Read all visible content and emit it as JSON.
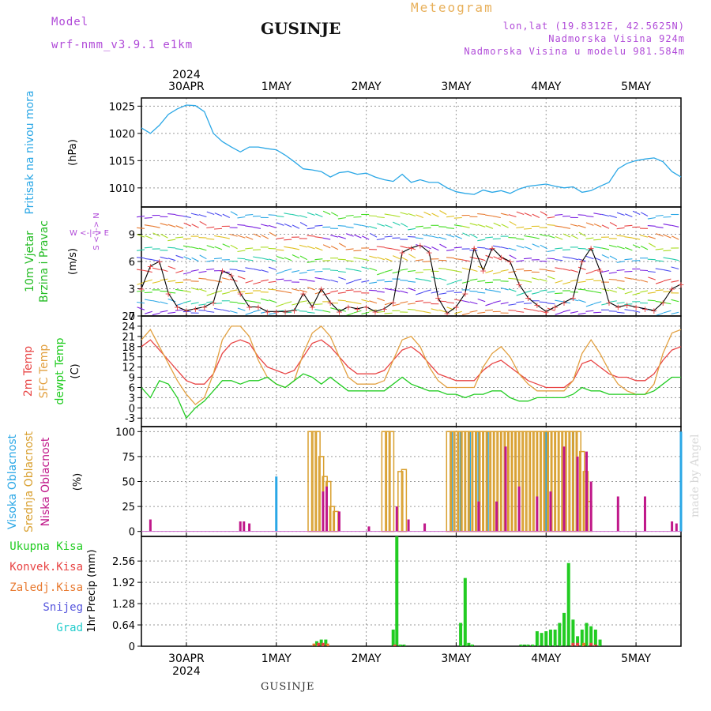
{
  "header": {
    "model_label": "Model",
    "model_name": "wrf-nmm_v3.9.1 e1km",
    "title": "GUSINJE",
    "subtitle": "Meteogram",
    "lonlat": "lon,lat (19.8312E, 42.5625N)",
    "elevation": "Nadmorska Visina 924m",
    "model_elevation": "Nadmorska Visina u modelu 981.584m"
  },
  "footer": {
    "station": "GUSINJE",
    "watermark": "made by Angel"
  },
  "colors": {
    "pressure": "#2aa7e6",
    "wind_label": "#22bb22",
    "temp2m": "#e84444",
    "sfc": "#e2a040",
    "dewpt": "#22cc22",
    "cloud_high": "#2aa7e6",
    "cloud_mid": "#d9a030",
    "cloud_low": "#c0188a",
    "precip_total": "#22cc22",
    "precip_conv": "#e84444",
    "precip_frz": "#e87a30",
    "snow": "#5555dd",
    "hail": "#22cccc",
    "header_purple": "#b04ad8"
  },
  "chart_data": [
    {
      "type": "line",
      "panel": "pressure",
      "title": "Pritisak na nivou mora",
      "ylabel": "(hPa)",
      "ylim": [
        1006.5,
        1026.5
      ],
      "yticks": [
        1010,
        1015,
        1020,
        1025
      ],
      "xlim": [
        -0.5,
        5.5
      ],
      "xunit": "days since 30APR 2024 00UTC",
      "top_year": "2024",
      "xtick_labels": [
        "30APR",
        "1MAY",
        "2MAY",
        "3MAY",
        "4MAY",
        "5MAY"
      ],
      "grid": true,
      "series": [
        {
          "name": "Pritisak na nivou mora",
          "x": [
            -0.5,
            -0.4,
            -0.3,
            -0.2,
            -0.1,
            0.0,
            0.1,
            0.2,
            0.3,
            0.4,
            0.5,
            0.6,
            0.7,
            0.8,
            0.9,
            1.0,
            1.1,
            1.2,
            1.3,
            1.4,
            1.5,
            1.6,
            1.7,
            1.8,
            1.9,
            2.0,
            2.1,
            2.2,
            2.3,
            2.4,
            2.5,
            2.6,
            2.7,
            2.8,
            2.9,
            3.0,
            3.1,
            3.2,
            3.3,
            3.4,
            3.5,
            3.6,
            3.7,
            3.8,
            3.9,
            4.0,
            4.1,
            4.2,
            4.3,
            4.4,
            4.5,
            4.6,
            4.7,
            4.8,
            4.9,
            5.0,
            5.1,
            5.2,
            5.3,
            5.4,
            5.5
          ],
          "values": [
            1021.0,
            1020.0,
            1021.5,
            1023.5,
            1024.5,
            1025.2,
            1025.1,
            1024.0,
            1020.0,
            1018.5,
            1017.5,
            1016.6,
            1017.5,
            1017.5,
            1017.2,
            1017.0,
            1016.0,
            1014.8,
            1013.5,
            1013.3,
            1013.0,
            1012.0,
            1012.8,
            1013.0,
            1012.5,
            1012.7,
            1012.0,
            1011.5,
            1011.2,
            1012.5,
            1011.0,
            1011.5,
            1011.0,
            1011.0,
            1010.0,
            1009.3,
            1009.0,
            1008.8,
            1009.6,
            1009.2,
            1009.5,
            1009.0,
            1009.8,
            1010.3,
            1010.5,
            1010.7,
            1010.3,
            1010.0,
            1010.2,
            1009.2,
            1009.5,
            1010.3,
            1011.0,
            1013.5,
            1014.5,
            1015.0,
            1015.3,
            1015.5,
            1014.8,
            1013.0,
            1012.0
          ]
        }
      ]
    },
    {
      "type": "scatter",
      "panel": "wind",
      "title": "10m Vjetar Brzina i Pravac",
      "ylabel": "(m/s)",
      "legend": "W <-|-> E  S <-|-> N",
      "ylim": [
        0,
        12
      ],
      "yticks": [
        0,
        3,
        6,
        9
      ],
      "xlim": [
        -0.5,
        5.5
      ],
      "grid": true,
      "series": [
        {
          "name": "10m Vjetar",
          "x": [
            -0.5,
            -0.4,
            -0.3,
            -0.2,
            -0.1,
            0.0,
            0.1,
            0.2,
            0.3,
            0.4,
            0.5,
            0.6,
            0.7,
            0.8,
            0.9,
            1.0,
            1.1,
            1.2,
            1.3,
            1.4,
            1.5,
            1.6,
            1.7,
            1.8,
            1.9,
            2.0,
            2.1,
            2.2,
            2.3,
            2.4,
            2.5,
            2.6,
            2.7,
            2.8,
            2.9,
            3.0,
            3.1,
            3.2,
            3.3,
            3.4,
            3.5,
            3.6,
            3.7,
            3.8,
            3.9,
            4.0,
            4.1,
            4.2,
            4.3,
            4.4,
            4.5,
            4.6,
            4.7,
            4.8,
            4.9,
            5.0,
            5.1,
            5.2,
            5.3,
            5.4,
            5.5
          ],
          "values": [
            3.0,
            5.5,
            6.0,
            2.5,
            1.0,
            0.6,
            0.8,
            1.0,
            1.5,
            5.0,
            4.5,
            2.5,
            1.0,
            1.0,
            0.5,
            0.5,
            0.5,
            0.6,
            2.5,
            1.0,
            3.0,
            1.5,
            0.5,
            1.0,
            0.8,
            1.0,
            0.5,
            0.8,
            1.5,
            7.0,
            7.5,
            7.8,
            7.0,
            2.0,
            0.3,
            1.0,
            2.5,
            7.5,
            5.0,
            7.5,
            6.5,
            6.0,
            3.5,
            2.0,
            1.2,
            0.5,
            1.0,
            1.5,
            2.0,
            6.0,
            7.5,
            5.0,
            1.5,
            1.0,
            1.2,
            1.0,
            0.8,
            0.6,
            1.5,
            3.0,
            3.5
          ]
        }
      ]
    },
    {
      "type": "line",
      "panel": "temperature",
      "ylabel": "(C)",
      "ylim": [
        -5.5,
        27
      ],
      "yticks": [
        -3,
        0,
        3,
        6,
        9,
        12,
        15,
        18,
        21,
        24,
        27
      ],
      "xlim": [
        -0.5,
        5.5
      ],
      "grid": true,
      "series": [
        {
          "name": "2m Temp",
          "x": [
            -0.5,
            -0.4,
            -0.3,
            -0.2,
            -0.1,
            0.0,
            0.1,
            0.2,
            0.3,
            0.4,
            0.5,
            0.6,
            0.7,
            0.8,
            0.9,
            1.0,
            1.1,
            1.2,
            1.3,
            1.4,
            1.5,
            1.6,
            1.7,
            1.8,
            1.9,
            2.0,
            2.1,
            2.2,
            2.3,
            2.4,
            2.5,
            2.6,
            2.7,
            2.8,
            2.9,
            3.0,
            3.1,
            3.2,
            3.3,
            3.4,
            3.5,
            3.6,
            3.7,
            3.8,
            3.9,
            4.0,
            4.1,
            4.2,
            4.3,
            4.4,
            4.5,
            4.6,
            4.7,
            4.8,
            4.9,
            5.0,
            5.1,
            5.2,
            5.3,
            5.4,
            5.5
          ],
          "values": [
            18,
            20,
            17,
            14,
            11,
            8,
            7,
            7,
            10,
            16,
            19,
            20,
            19,
            15,
            12,
            11,
            10,
            11,
            15,
            19,
            20,
            18,
            15,
            12,
            10,
            10,
            10,
            11,
            14,
            17,
            18,
            16,
            13,
            10,
            9,
            8,
            8,
            8,
            11,
            13,
            14,
            12,
            10,
            8,
            7,
            6,
            6,
            6,
            8,
            13,
            14,
            12,
            10,
            9,
            9,
            8,
            8,
            10,
            14,
            17,
            18
          ]
        },
        {
          "name": "SFC Temp",
          "x": [
            -0.5,
            -0.4,
            -0.3,
            -0.2,
            -0.1,
            0.0,
            0.1,
            0.2,
            0.3,
            0.4,
            0.5,
            0.6,
            0.7,
            0.8,
            0.9,
            1.0,
            1.1,
            1.2,
            1.3,
            1.4,
            1.5,
            1.6,
            1.7,
            1.8,
            1.9,
            2.0,
            2.1,
            2.2,
            2.3,
            2.4,
            2.5,
            2.6,
            2.7,
            2.8,
            2.9,
            3.0,
            3.1,
            3.2,
            3.3,
            3.4,
            3.5,
            3.6,
            3.7,
            3.8,
            3.9,
            4.0,
            4.1,
            4.2,
            4.3,
            4.4,
            4.5,
            4.6,
            4.7,
            4.8,
            4.9,
            5.0,
            5.1,
            5.2,
            5.3,
            5.4,
            5.5
          ],
          "values": [
            20,
            23,
            18,
            13,
            8,
            4,
            1,
            3,
            10,
            20,
            24,
            24,
            21,
            14,
            9,
            7,
            6,
            8,
            16,
            22,
            24,
            21,
            15,
            9,
            7,
            7,
            7,
            8,
            14,
            20,
            21,
            18,
            12,
            8,
            6,
            6,
            6,
            6,
            12,
            16,
            18,
            15,
            10,
            7,
            5,
            5,
            5,
            5,
            8,
            16,
            20,
            16,
            11,
            7,
            5,
            4,
            4,
            7,
            16,
            22,
            23
          ]
        },
        {
          "name": "dewpt Temp",
          "x": [
            -0.5,
            -0.4,
            -0.3,
            -0.2,
            -0.1,
            0.0,
            0.1,
            0.2,
            0.3,
            0.4,
            0.5,
            0.6,
            0.7,
            0.8,
            0.9,
            1.0,
            1.1,
            1.2,
            1.3,
            1.4,
            1.5,
            1.6,
            1.7,
            1.8,
            1.9,
            2.0,
            2.1,
            2.2,
            2.3,
            2.4,
            2.5,
            2.6,
            2.7,
            2.8,
            2.9,
            3.0,
            3.1,
            3.2,
            3.3,
            3.4,
            3.5,
            3.6,
            3.7,
            3.8,
            3.9,
            4.0,
            4.1,
            4.2,
            4.3,
            4.4,
            4.5,
            4.6,
            4.7,
            4.8,
            4.9,
            5.0,
            5.1,
            5.2,
            5.3,
            5.4,
            5.5
          ],
          "values": [
            6,
            3,
            8,
            7,
            3,
            -3,
            0,
            2,
            5,
            8,
            8,
            7,
            8,
            8,
            9,
            7,
            6,
            8,
            10,
            9,
            7,
            9,
            7,
            5,
            5,
            5,
            5,
            5,
            7,
            9,
            7,
            6,
            5,
            5,
            4,
            4,
            3,
            4,
            4,
            5,
            5,
            3,
            2,
            2,
            3,
            3,
            3,
            3,
            4,
            6,
            5,
            5,
            4,
            4,
            4,
            4,
            4,
            5,
            7,
            9,
            9
          ]
        }
      ]
    },
    {
      "type": "bar",
      "panel": "clouds",
      "ylabel": "(%)",
      "ylim": [
        -5,
        105
      ],
      "yticks": [
        0,
        25,
        50,
        75,
        100
      ],
      "xlim": [
        -0.5,
        5.5
      ],
      "grid": true,
      "series": [
        {
          "name": "Visoka Oblacnost",
          "x": [
            1.0,
            2.95,
            3.05,
            3.15,
            3.25,
            3.35,
            4.0,
            4.3,
            5.5
          ],
          "values": [
            55,
            100,
            100,
            100,
            100,
            100,
            100,
            100,
            100
          ]
        },
        {
          "name": "Srednja Oblacnost",
          "x": [
            1.38,
            1.42,
            1.46,
            1.5,
            1.54,
            1.58,
            1.62,
            1.66,
            2.2,
            2.24,
            2.28,
            2.38,
            2.42,
            2.92,
            2.96,
            3.0,
            3.04,
            3.08,
            3.12,
            3.16,
            3.2,
            3.24,
            3.28,
            3.32,
            3.36,
            3.4,
            3.44,
            3.48,
            3.52,
            3.56,
            3.6,
            3.64,
            3.68,
            3.72,
            3.76,
            3.8,
            3.84,
            3.88,
            3.92,
            3.96,
            4.0,
            4.04,
            4.08,
            4.12,
            4.16,
            4.2,
            4.24,
            4.28,
            4.32,
            4.36,
            4.4,
            4.44,
            4.48
          ],
          "values": [
            100,
            100,
            100,
            75,
            55,
            50,
            25,
            20,
            100,
            100,
            100,
            60,
            62,
            100,
            100,
            100,
            100,
            100,
            100,
            100,
            100,
            100,
            100,
            100,
            100,
            100,
            100,
            100,
            100,
            100,
            100,
            100,
            100,
            100,
            100,
            100,
            100,
            100,
            100,
            100,
            100,
            100,
            100,
            100,
            100,
            100,
            100,
            100,
            100,
            100,
            80,
            60,
            30
          ]
        },
        {
          "name": "Niska Oblacnost",
          "x": [
            -0.4,
            0.6,
            0.64,
            0.7,
            1.52,
            1.56,
            1.7,
            2.03,
            2.34,
            2.47,
            2.65,
            3.25,
            3.45,
            3.55,
            3.7,
            3.9,
            4.05,
            4.2,
            4.35,
            4.45,
            4.5,
            4.8,
            5.1,
            5.4,
            5.45
          ],
          "values": [
            12,
            10,
            10,
            8,
            40,
            45,
            20,
            5,
            25,
            12,
            8,
            30,
            30,
            85,
            45,
            35,
            40,
            85,
            75,
            80,
            50,
            35,
            35,
            10,
            8
          ]
        }
      ]
    },
    {
      "type": "bar",
      "panel": "precipitation",
      "ylabel": "1hr Precip (mm)",
      "ylim": [
        0,
        3.3
      ],
      "yticks": [
        0,
        0.64,
        1.28,
        1.92,
        2.56
      ],
      "xlim": [
        -0.5,
        5.5
      ],
      "xtick_labels": [
        "30APR",
        "1MAY",
        "2MAY",
        "3MAY",
        "4MAY",
        "5MAY"
      ],
      "bottom_year": "2024",
      "grid": true,
      "series": [
        {
          "name": "Ukupna Kisa",
          "x": [
            1.45,
            1.5,
            1.55,
            2.3,
            2.34,
            2.38,
            2.42,
            3.05,
            3.1,
            3.14,
            3.18,
            3.72,
            3.76,
            3.8,
            3.85,
            3.9,
            3.95,
            4.0,
            4.05,
            4.1,
            4.15,
            4.2,
            4.25,
            4.3,
            4.35,
            4.4,
            4.45,
            4.5,
            4.55,
            4.6
          ],
          "values": [
            0.15,
            0.2,
            0.2,
            0.5,
            3.3,
            0.05,
            0.05,
            0.7,
            2.05,
            0.1,
            0.05,
            0.05,
            0.05,
            0.05,
            0.05,
            0.45,
            0.4,
            0.45,
            0.5,
            0.5,
            0.7,
            1.0,
            2.5,
            0.8,
            0.3,
            0.5,
            0.7,
            0.6,
            0.5,
            0.2
          ]
        },
        {
          "name": "Konvek.Kisa",
          "x": [
            1.47,
            1.52,
            2.32,
            4.3,
            4.35,
            4.5,
            4.55
          ],
          "values": [
            0.1,
            0.1,
            0.05,
            0.1,
            0.1,
            0.1,
            0.05
          ]
        },
        {
          "name": "Zaledj.Kisa",
          "x": [
            1.42,
            1.57,
            4.42
          ],
          "values": [
            0.08,
            0.08,
            0.1
          ]
        },
        {
          "name": "Snijeg",
          "x": [],
          "values": []
        },
        {
          "name": "Grad",
          "x": [],
          "values": []
        }
      ]
    }
  ]
}
